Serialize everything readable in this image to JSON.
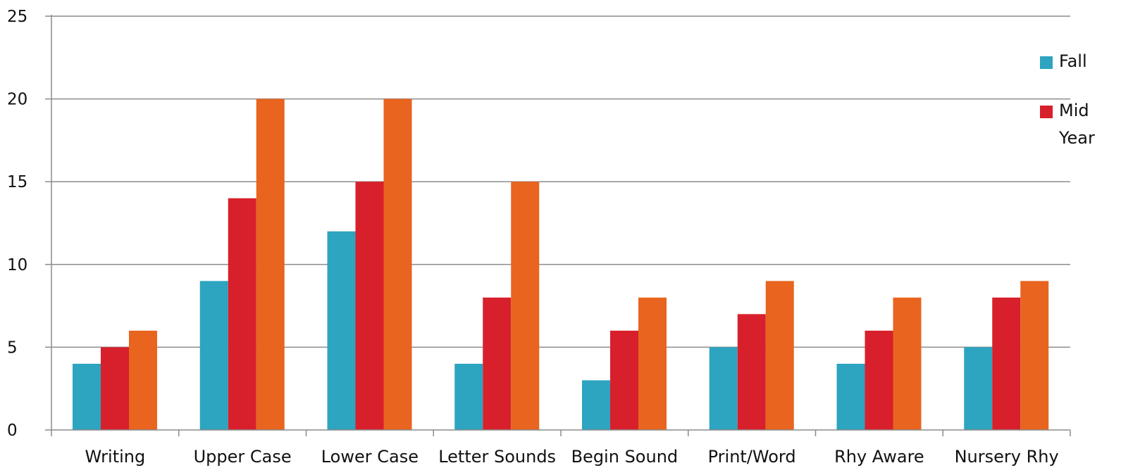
{
  "chart_data": {
    "type": "bar",
    "categories": [
      "Writing",
      "Upper Case",
      "Lower Case",
      "Letter Sounds",
      "Begin Sound",
      "Print/Word",
      "Rhy Aware",
      "Nursery Rhy"
    ],
    "series": [
      {
        "name": "Fall",
        "color": "#2da4c0",
        "values": [
          4,
          9,
          12,
          4,
          3,
          5,
          4,
          5
        ]
      },
      {
        "name": "Mid Year",
        "color": "#d7202b",
        "values": [
          5,
          14,
          15,
          8,
          6,
          7,
          6,
          8
        ]
      },
      {
        "color": "#e8641f",
        "values": [
          6,
          20,
          20,
          15,
          8,
          9,
          8,
          9
        ]
      }
    ],
    "yticks": [
      0,
      5,
      10,
      15,
      20,
      25
    ],
    "ylim": [
      0,
      25
    ],
    "grid": true,
    "legend_position": "right",
    "title": "",
    "xlabel": "",
    "ylabel": ""
  }
}
